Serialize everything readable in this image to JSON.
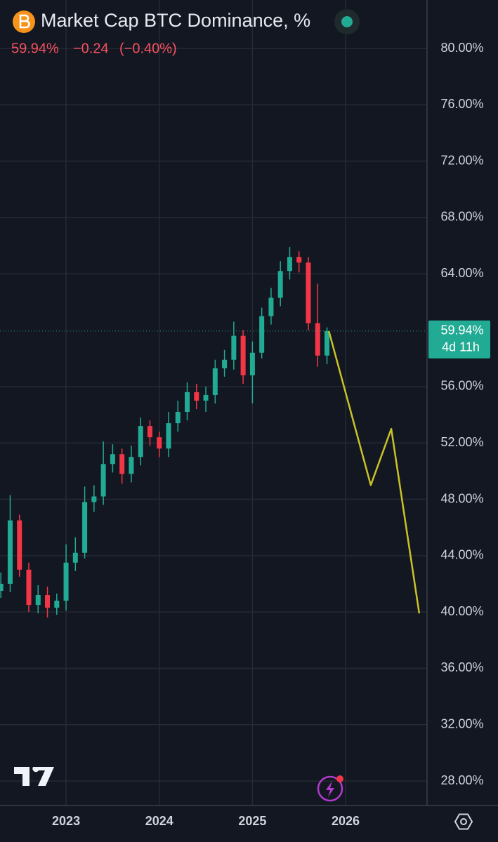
{
  "chart_data": {
    "type": "candlestick",
    "title": "Market Cap BTC Dominance, %",
    "last": {
      "value": 59.94,
      "label": "59.94%"
    },
    "change": {
      "value": -0.24,
      "label": "−0.24"
    },
    "change_pct": {
      "value": -0.4,
      "label": "(−0.40%)"
    },
    "countdown": "4d 11h",
    "xlim": [
      2022.291,
      2026.874
    ],
    "xticks": [
      2023,
      2024,
      2025,
      2026
    ],
    "ylim": [
      26.26,
      83.44
    ],
    "yticks": [
      {
        "value": 28,
        "label": "28.00%"
      },
      {
        "value": 32,
        "label": "32.00%"
      },
      {
        "value": 36,
        "label": "36.00%"
      },
      {
        "value": 40,
        "label": "40.00%"
      },
      {
        "value": 44,
        "label": "44.00%"
      },
      {
        "value": 48,
        "label": "48.00%"
      },
      {
        "value": 52,
        "label": "52.00%"
      },
      {
        "value": 56,
        "label": "56.00%"
      },
      {
        "value": 64,
        "label": "64.00%"
      },
      {
        "value": 68,
        "label": "68.00%"
      },
      {
        "value": 72,
        "label": "72.00%"
      },
      {
        "value": 76,
        "label": "76.00%"
      },
      {
        "value": 80,
        "label": "80.00%"
      }
    ],
    "grid": true,
    "candles": {
      "up_color": "#22ab94",
      "down_color": "#f23645",
      "x": [
        2022.3,
        2022.4,
        2022.5,
        2022.6,
        2022.7,
        2022.8,
        2022.9,
        2023.0,
        2023.1,
        2023.2,
        2023.3,
        2023.4,
        2023.5,
        2023.6,
        2023.7,
        2023.8,
        2023.9,
        2024.0,
        2024.1,
        2024.2,
        2024.3,
        2024.4,
        2024.5,
        2024.6,
        2024.7,
        2024.8,
        2024.9,
        2025.0,
        2025.1,
        2025.2,
        2025.3,
        2025.4,
        2025.5,
        2025.6,
        2025.7,
        2025.8
      ],
      "open": [
        41.5,
        42.0,
        46.5,
        43.0,
        40.5,
        41.2,
        40.3,
        40.8,
        43.5,
        44.2,
        47.8,
        48.2,
        50.5,
        51.2,
        49.8,
        51.0,
        53.2,
        52.4,
        51.6,
        53.4,
        54.2,
        55.6,
        55.0,
        55.4,
        57.3,
        57.9,
        59.6,
        56.8,
        58.4,
        61.0,
        62.3,
        64.2,
        65.2,
        64.8,
        60.5,
        58.2
      ],
      "high": [
        42.8,
        48.3,
        46.9,
        43.5,
        41.9,
        41.8,
        41.3,
        44.8,
        45.3,
        48.9,
        49.0,
        52.1,
        51.9,
        51.6,
        51.8,
        53.8,
        53.6,
        52.8,
        54.2,
        55.0,
        56.3,
        56.2,
        56.0,
        57.9,
        58.6,
        60.6,
        60.0,
        59.2,
        61.6,
        63.0,
        64.9,
        65.9,
        65.6,
        65.2,
        63.3,
        60.2
      ],
      "low": [
        41.0,
        41.4,
        42.5,
        40.0,
        39.9,
        39.6,
        39.8,
        40.1,
        42.9,
        43.8,
        47.1,
        47.6,
        49.9,
        49.1,
        49.2,
        50.4,
        51.8,
        51.0,
        51.0,
        52.8,
        53.6,
        54.4,
        54.2,
        54.8,
        56.7,
        57.2,
        56.2,
        54.8,
        58.0,
        60.4,
        61.7,
        63.6,
        64.1,
        60.0,
        57.4,
        57.6
      ],
      "close": [
        42.0,
        46.5,
        43.0,
        40.5,
        41.2,
        40.3,
        40.8,
        43.5,
        44.2,
        47.8,
        48.2,
        50.5,
        51.2,
        49.8,
        51.0,
        53.2,
        52.4,
        51.6,
        53.4,
        54.2,
        55.6,
        55.0,
        55.4,
        57.3,
        57.9,
        59.6,
        56.8,
        58.4,
        61.0,
        62.3,
        64.2,
        65.2,
        64.8,
        60.5,
        58.2,
        59.94
      ]
    },
    "projection": {
      "color": "#c9c227",
      "x": [
        2025.82,
        2026.27,
        2026.49,
        2026.79
      ],
      "values": [
        59.94,
        49.0,
        53.0,
        39.9
      ]
    }
  }
}
